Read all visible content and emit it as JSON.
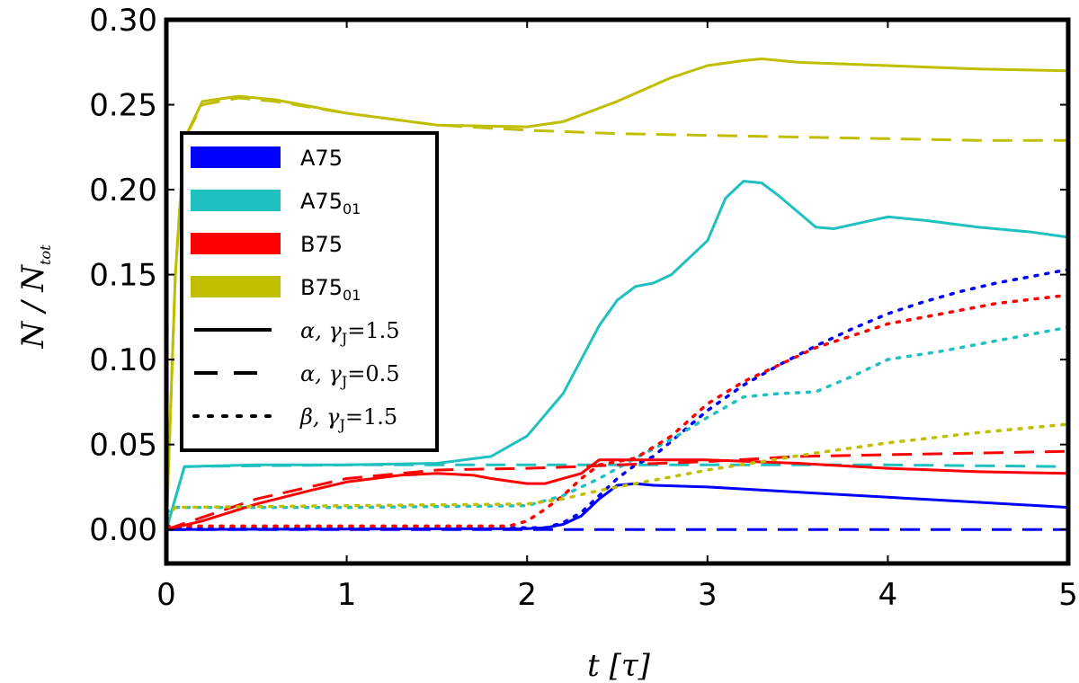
{
  "chart_data": {
    "type": "line",
    "title": "",
    "xlabel": "t [τ]",
    "ylabel": "N / N_tot",
    "ylabel_main": "N / N",
    "ylabel_sub": "tot",
    "xlim": [
      0,
      5
    ],
    "ylim": [
      -0.02,
      0.3
    ],
    "xticks": [
      0,
      1,
      2,
      3,
      4,
      5
    ],
    "xtick_labels": [
      "0",
      "1",
      "2",
      "3",
      "4",
      "5"
    ],
    "yticks": [
      0.0,
      0.05,
      0.1,
      0.15,
      0.2,
      0.25,
      0.3
    ],
    "ytick_labels": [
      "0.00",
      "0.05",
      "0.10",
      "0.15",
      "0.20",
      "0.25",
      "0.30"
    ],
    "grid": false,
    "legend_position": "center-left",
    "legend": {
      "models": [
        {
          "label": "A75",
          "main": "A75",
          "sub": "",
          "color": "#0000ff"
        },
        {
          "label": "A75_01",
          "main": "A75",
          "sub": "01",
          "color": "#1fc0c0"
        },
        {
          "label": "B75",
          "main": "B75",
          "sub": "",
          "color": "#ff0000"
        },
        {
          "label": "B75_01",
          "main": "B75",
          "sub": "01",
          "color": "#bfbf00"
        }
      ],
      "styles": [
        {
          "label": "α, γJ=1.5",
          "greek": "α,",
          "gamma": "γ",
          "gsub": "J",
          "value": "=1.5",
          "dash": "solid"
        },
        {
          "label": "α, γJ=0.5",
          "greek": "α,",
          "gamma": "γ",
          "gsub": "J",
          "value": "=0.5",
          "dash": "dashed"
        },
        {
          "label": "β, γJ=1.5",
          "greek": "β,",
          "gamma": "γ",
          "gsub": "J",
          "value": "=1.5",
          "dash": "dotted"
        }
      ]
    },
    "series": [
      {
        "name": "A75 α γJ=1.5",
        "color": "#0000ff",
        "dash": "solid",
        "x": [
          0,
          2.0,
          2.1,
          2.2,
          2.3,
          2.4,
          2.5,
          2.6,
          2.7,
          3.0,
          3.5,
          4.0,
          4.5,
          5.0
        ],
        "y": [
          0,
          0.0005,
          0.001,
          0.003,
          0.008,
          0.018,
          0.026,
          0.027,
          0.026,
          0.025,
          0.022,
          0.019,
          0.016,
          0.013
        ]
      },
      {
        "name": "A75 α γJ=0.5",
        "color": "#0000ff",
        "dash": "dashed",
        "x": [
          0,
          5.0
        ],
        "y": [
          0,
          0
        ]
      },
      {
        "name": "A75 β γJ=1.5",
        "color": "#0000ff",
        "dash": "dotted",
        "x": [
          0,
          2.1,
          2.2,
          2.3,
          2.4,
          2.5,
          2.6,
          2.7,
          2.8,
          3.0,
          3.2,
          3.4,
          3.6,
          3.8,
          4.0,
          4.2,
          4.4,
          4.6,
          4.8,
          5.0
        ],
        "y": [
          0.001,
          0.001,
          0.004,
          0.01,
          0.02,
          0.03,
          0.038,
          0.043,
          0.052,
          0.07,
          0.085,
          0.097,
          0.108,
          0.118,
          0.127,
          0.134,
          0.14,
          0.145,
          0.149,
          0.153
        ]
      },
      {
        "name": "A75_01 α γJ=1.5",
        "color": "#1fc0c0",
        "dash": "solid",
        "x": [
          0,
          0.1,
          0.5,
          1.0,
          1.5,
          1.8,
          2.0,
          2.2,
          2.4,
          2.5,
          2.6,
          2.7,
          2.8,
          3.0,
          3.1,
          3.2,
          3.3,
          3.4,
          3.5,
          3.6,
          3.7,
          4.0,
          4.2,
          4.5,
          4.8,
          5.0
        ],
        "y": [
          0,
          0.037,
          0.038,
          0.038,
          0.039,
          0.043,
          0.055,
          0.08,
          0.12,
          0.135,
          0.143,
          0.145,
          0.15,
          0.17,
          0.195,
          0.205,
          0.204,
          0.196,
          0.187,
          0.178,
          0.177,
          0.184,
          0.182,
          0.178,
          0.175,
          0.172
        ]
      },
      {
        "name": "A75_01 α γJ=0.5",
        "color": "#1fc0c0",
        "dash": "dashed",
        "x": [
          0,
          0.1,
          1.0,
          2.0,
          3.0,
          4.0,
          5.0
        ],
        "y": [
          0,
          0.037,
          0.038,
          0.038,
          0.038,
          0.038,
          0.037
        ]
      },
      {
        "name": "A75_01 β γJ=1.5",
        "color": "#1fc0c0",
        "dash": "dotted",
        "x": [
          0,
          0.05,
          1.0,
          2.0,
          2.2,
          2.4,
          2.6,
          2.8,
          3.0,
          3.2,
          3.4,
          3.6,
          3.8,
          4.0,
          4.3,
          4.6,
          5.0
        ],
        "y": [
          0.01,
          0.013,
          0.013,
          0.014,
          0.02,
          0.03,
          0.042,
          0.053,
          0.066,
          0.078,
          0.08,
          0.081,
          0.09,
          0.1,
          0.105,
          0.111,
          0.119
        ]
      },
      {
        "name": "B75 α γJ=1.5",
        "color": "#ff0000",
        "dash": "solid",
        "x": [
          0,
          0.2,
          0.5,
          0.8,
          1.0,
          1.3,
          1.5,
          1.7,
          1.8,
          2.0,
          2.1,
          2.3,
          2.4,
          2.7,
          3.0,
          3.5,
          4.0,
          4.5,
          5.0
        ],
        "y": [
          0,
          0.005,
          0.015,
          0.023,
          0.028,
          0.032,
          0.033,
          0.032,
          0.03,
          0.027,
          0.027,
          0.033,
          0.041,
          0.041,
          0.041,
          0.039,
          0.036,
          0.034,
          0.033
        ]
      },
      {
        "name": "B75 α γJ=0.5",
        "color": "#ff0000",
        "dash": "dashed",
        "x": [
          0,
          0.5,
          1.0,
          1.5,
          2.0,
          2.3,
          2.5,
          3.0,
          3.5,
          4.0,
          4.5,
          5.0
        ],
        "y": [
          0,
          0.018,
          0.03,
          0.035,
          0.036,
          0.037,
          0.038,
          0.04,
          0.043,
          0.044,
          0.045,
          0.046
        ]
      },
      {
        "name": "B75 β γJ=1.5",
        "color": "#ff0000",
        "dash": "dotted",
        "x": [
          0,
          1.9,
          2.0,
          2.1,
          2.2,
          2.3,
          2.4,
          2.6,
          2.8,
          3.0,
          3.2,
          3.4,
          3.6,
          3.8,
          4.0,
          4.3,
          4.6,
          5.0
        ],
        "y": [
          0.002,
          0.002,
          0.005,
          0.012,
          0.02,
          0.03,
          0.038,
          0.042,
          0.055,
          0.074,
          0.087,
          0.097,
          0.107,
          0.114,
          0.121,
          0.127,
          0.133,
          0.138
        ]
      },
      {
        "name": "B75_01 α γJ=1.5",
        "color": "#bfbf00",
        "dash": "solid",
        "x": [
          0,
          0.05,
          0.1,
          0.2,
          0.4,
          0.6,
          1.0,
          1.5,
          2.0,
          2.2,
          2.5,
          2.8,
          3.0,
          3.2,
          3.3,
          3.5,
          4.0,
          4.5,
          5.0
        ],
        "y": [
          0,
          0.15,
          0.23,
          0.252,
          0.255,
          0.253,
          0.245,
          0.238,
          0.237,
          0.24,
          0.252,
          0.266,
          0.273,
          0.276,
          0.277,
          0.275,
          0.273,
          0.271,
          0.27
        ]
      },
      {
        "name": "B75_01 α γJ=0.5",
        "color": "#bfbf00",
        "dash": "dashed",
        "x": [
          0,
          0.05,
          0.1,
          0.2,
          0.4,
          0.6,
          1.0,
          1.5,
          2.0,
          2.5,
          3.0,
          3.5,
          4.0,
          4.5,
          5.0
        ],
        "y": [
          0,
          0.15,
          0.23,
          0.25,
          0.254,
          0.252,
          0.245,
          0.238,
          0.235,
          0.233,
          0.232,
          0.231,
          0.23,
          0.229,
          0.229
        ]
      },
      {
        "name": "B75_01 β γJ=1.5",
        "color": "#bfbf00",
        "dash": "dotted",
        "x": [
          0,
          0.05,
          1.0,
          2.0,
          2.2,
          2.4,
          2.6,
          2.8,
          3.0,
          3.3,
          3.6,
          4.0,
          4.5,
          5.0
        ],
        "y": [
          0.007,
          0.013,
          0.014,
          0.015,
          0.018,
          0.023,
          0.027,
          0.031,
          0.035,
          0.04,
          0.045,
          0.051,
          0.057,
          0.062
        ]
      }
    ]
  }
}
